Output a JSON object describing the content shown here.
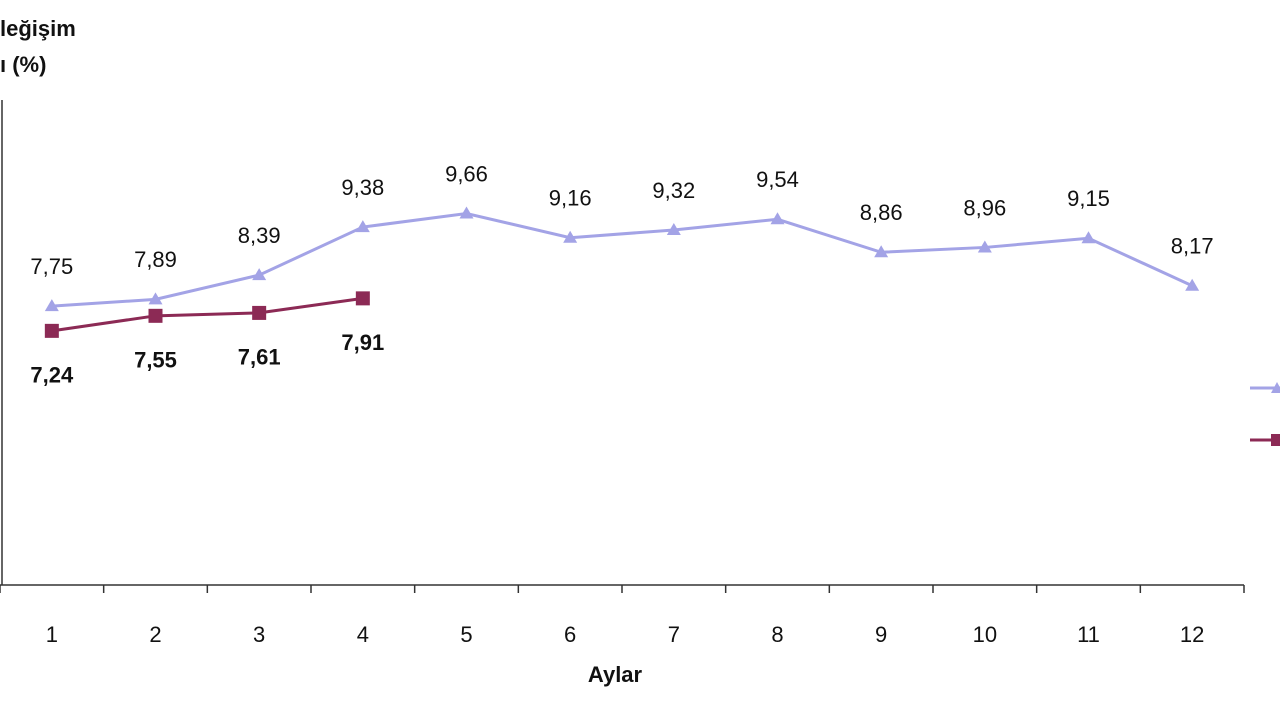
{
  "chart_data": {
    "type": "line",
    "title_lines": [
      "leğişim",
      "ı (%)"
    ],
    "x_label": "Aylar",
    "categories": [
      "1",
      "2",
      "3",
      "4",
      "5",
      "6",
      "7",
      "8",
      "9",
      "10",
      "11",
      "12"
    ],
    "ylim": [
      2,
      12
    ],
    "series": [
      {
        "color": "#a3a3e6",
        "marker": "triangle",
        "label_position": "above",
        "values": [
          7.75,
          7.89,
          8.39,
          9.38,
          9.66,
          9.16,
          9.32,
          9.54,
          8.86,
          8.96,
          9.15,
          8.17
        ],
        "value_labels": [
          "7,75",
          "7,89",
          "8,39",
          "9,38",
          "9,66",
          "9,16",
          "9,32",
          "9,54",
          "8,86",
          "8,96",
          "9,15",
          "8,17"
        ]
      },
      {
        "color": "#8c2a55",
        "marker": "square",
        "label_position": "below",
        "values": [
          7.24,
          7.55,
          7.61,
          7.91,
          null,
          null,
          null,
          null,
          null,
          null,
          null,
          null
        ],
        "value_labels": [
          "7,24",
          "7,55",
          "7,61",
          "7,91",
          null,
          null,
          null,
          null,
          null,
          null,
          null,
          null
        ]
      }
    ]
  }
}
